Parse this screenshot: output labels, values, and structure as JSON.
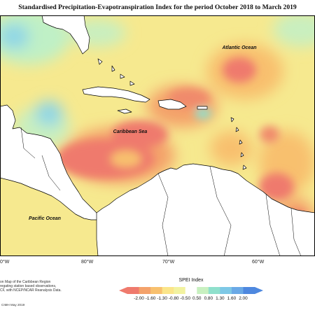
{
  "map": {
    "title": "Standardised Precipitation-Evapotranspiration Index for the period October 2018 to March 2019",
    "labels": {
      "atlantic": "Atlantic Ocean",
      "caribbean": "Caribbean Sea",
      "pacific": "Pacific Ocean"
    },
    "longitude_ticks": [
      "0°W",
      "80°W",
      "70°W",
      "60°W"
    ],
    "footnote": [
      "on Map of the Caribbean Region",
      "regating station based observations,",
      "CF, with NCEP/NCAR Reanalysis Data."
    ],
    "credit": "CIMH May 2019",
    "land_color": "#ffffff",
    "coast_color": "#000000"
  },
  "legend": {
    "title": "SPEI Index",
    "ticks": [
      "-2.00",
      "-1.60",
      "-1.30",
      "-0.80",
      "-0.50",
      "0.50",
      "0.80",
      "1.30",
      "1.60",
      "2.00"
    ],
    "colors": [
      "#ef7a6d",
      "#f4a26b",
      "#f8c06e",
      "#fbe58a",
      "#f2f2a0",
      "#ffffff",
      "#c8f0c0",
      "#8fe0cc",
      "#7ec8e6",
      "#6aa9e6",
      "#4e88df"
    ]
  }
}
